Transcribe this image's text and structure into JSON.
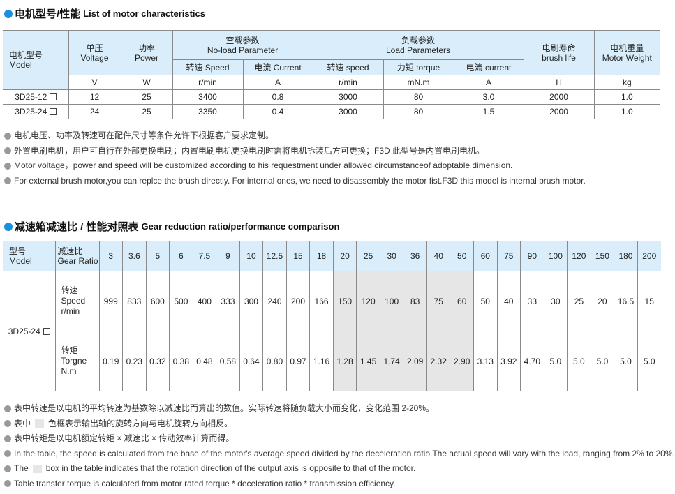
{
  "section1": {
    "title_cn": "电机型号/性能",
    "title_en": "List of motor characteristics",
    "headers": {
      "model": [
        "电机型号",
        "Model"
      ],
      "voltage": [
        "单压",
        "Voltage"
      ],
      "power": [
        "功率",
        "Power"
      ],
      "noload": [
        "空载参数",
        "No-load Parameter"
      ],
      "load": [
        "负载参数",
        "Load Parameters"
      ],
      "brush": [
        "电刷寿命",
        "brush life"
      ],
      "weight": [
        "电机重量",
        "Motor Weight"
      ],
      "sub": [
        "转速 Speed",
        "电流 Current",
        "转速 speed",
        "力矩 torque",
        "电流 current"
      ],
      "units": [
        "V",
        "W",
        "r/min",
        "A",
        "r/min",
        "mN.m",
        "A",
        "H",
        "kg"
      ]
    },
    "rows": [
      {
        "model": "3D25-12",
        "values": [
          "12",
          "25",
          "3400",
          "0.8",
          "3000",
          "80",
          "3.0",
          "2000",
          "1.0"
        ]
      },
      {
        "model": "3D25-24",
        "values": [
          "24",
          "25",
          "3350",
          "0.4",
          "3000",
          "80",
          "1.5",
          "2000",
          "1.0"
        ]
      }
    ],
    "notes": [
      "电机电压、功率及转速可在配件尺寸等条件允许下根据客户要求定制。",
      "外置电刷电机，用户可自行在外部更换电刷；内置电刷电机更换电刷时需将电机拆装后方可更换；F3D 此型号是内置电刷电机。",
      "Motor voltage，power and speed will be customized according to his requestment under allowed circumstanceof adoptable dimension.",
      "For external brush motor,you can replce the brush directly. For internal ones, we need to disassembly the motor fist.F3D this model is internal brush motor."
    ]
  },
  "section2": {
    "title_cn": "减速箱减速比 / 性能对照表",
    "title_en": "Gear reduction ratio/performance comparison",
    "model_header": [
      "型号",
      "Model"
    ],
    "ratio_header": [
      "减速比",
      "Gear Ratio"
    ],
    "ratios": [
      "3",
      "3.6",
      "5",
      "6",
      "7.5",
      "9",
      "10",
      "12.5",
      "15",
      "18",
      "20",
      "25",
      "30",
      "36",
      "40",
      "50",
      "60",
      "75",
      "90",
      "100",
      "120",
      "150",
      "180",
      "200"
    ],
    "shaded_ratios": [
      "20",
      "25",
      "30",
      "36",
      "40",
      "50"
    ],
    "shade_color": "#e6e6e6",
    "model": "3D25-24",
    "speed_label": [
      "转速",
      "Speed",
      "r/min"
    ],
    "torque_label": [
      "转矩",
      "Torgne",
      "N.m"
    ],
    "speed": [
      "999",
      "833",
      "600",
      "500",
      "400",
      "333",
      "300",
      "240",
      "200",
      "166",
      "150",
      "120",
      "100",
      "83",
      "75",
      "60",
      "50",
      "40",
      "33",
      "30",
      "25",
      "20",
      "16.5",
      "15"
    ],
    "torque": [
      "0.19",
      "0.23",
      "0.32",
      "0.38",
      "0.48",
      "0.58",
      "0.64",
      "0.80",
      "0.97",
      "1.16",
      "1.28",
      "1.45",
      "1.74",
      "2.09",
      "2.32",
      "2.90",
      "3.13",
      "3.92",
      "4.70",
      "5.0",
      "5.0",
      "5.0",
      "5.0",
      "5.0"
    ],
    "notes": [
      {
        "before": "表中转速是以电机的平均转速为基数除以减速比而算出的数值。实际转速将随负载大小而变化，变化范围 2-20%。"
      },
      {
        "before": "表中",
        "after": "色框表示输出轴的旋转方向与电机旋转方向相反。"
      },
      {
        "before": "表中转矩是以电机额定转矩 × 减速比 × 传动效率计算而得。"
      },
      {
        "before": "In the table, the speed is calculated from the base of the motor's average speed  divided by the deceleration ratio.The actual speed will vary with the load, ranging from 2% to 20%."
      },
      {
        "before": "The",
        "after": "box in the table indicates that the rotation direction of the output axis is opposite to that of the motor."
      },
      {
        "before": "Table transfer torque is calculated from motor rated torque * deceleration ratio * transmission efficiency."
      }
    ]
  },
  "colors": {
    "accent": "#1a8fe0",
    "header_bg": "#d9eefa"
  }
}
